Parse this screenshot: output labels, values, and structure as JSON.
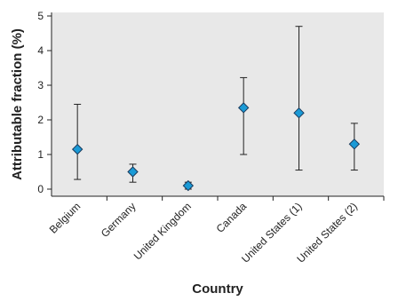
{
  "chart_data": {
    "type": "scatter",
    "title": "",
    "xlabel": "Country",
    "ylabel": "Attributable fraction (%)",
    "ylim": [
      0,
      5
    ],
    "yticks": [
      0,
      1,
      2,
      3,
      4,
      5
    ],
    "grid": false,
    "categories": [
      "Belgium",
      "Germany",
      "United Kingdom",
      "Canada",
      "United States (1)",
      "United States (2)"
    ],
    "values": [
      1.15,
      0.5,
      0.1,
      2.35,
      2.2,
      1.3
    ],
    "error_low": [
      0.28,
      0.2,
      0.0,
      1.0,
      0.55,
      0.55
    ],
    "error_high": [
      2.45,
      0.72,
      0.2,
      3.22,
      4.7,
      1.9
    ],
    "marker": "diamond",
    "colors": {
      "plot_background": "#e8e8e8",
      "marker_fill": "#1a9ad6",
      "marker_edge": "#1a3a5c",
      "error_bar": "#222222"
    }
  }
}
